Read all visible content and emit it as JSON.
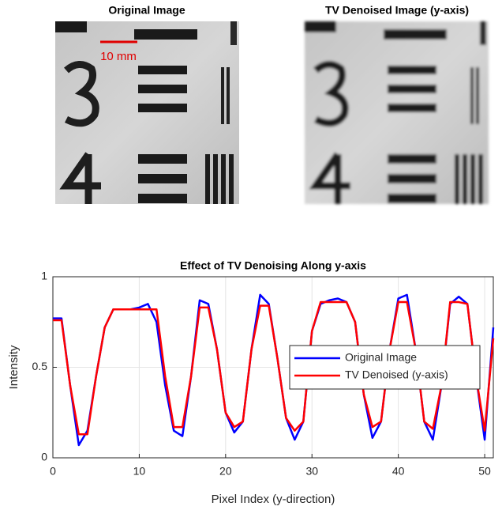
{
  "images": [
    {
      "title": "Original Image",
      "scale_bar_label": "10 mm"
    },
    {
      "title": "TV Denoised Image (y-axis)"
    }
  ],
  "chart_data": {
    "type": "line",
    "title": "Effect of TV Denoising Along y-axis",
    "x_label": "Pixel Index (y-direction)",
    "y_label": "Intensity",
    "x": [
      0,
      1,
      2,
      3,
      4,
      5,
      6,
      7,
      8,
      9,
      10,
      11,
      12,
      13,
      14,
      15,
      16,
      17,
      18,
      19,
      20,
      21,
      22,
      23,
      24,
      25,
      26,
      27,
      28,
      29,
      30,
      31,
      32,
      33,
      34,
      35,
      36,
      37,
      38,
      39,
      40,
      41,
      42,
      43,
      44,
      45,
      46,
      47,
      48,
      49,
      50,
      51
    ],
    "series": [
      {
        "name": "Original Image",
        "color": "#0000ff",
        "values": [
          0.77,
          0.77,
          0.4,
          0.07,
          0.15,
          0.45,
          0.72,
          0.82,
          0.82,
          0.82,
          0.83,
          0.85,
          0.75,
          0.4,
          0.15,
          0.12,
          0.45,
          0.87,
          0.85,
          0.6,
          0.25,
          0.14,
          0.2,
          0.6,
          0.9,
          0.85,
          0.55,
          0.22,
          0.1,
          0.2,
          0.7,
          0.85,
          0.87,
          0.88,
          0.86,
          0.75,
          0.35,
          0.11,
          0.2,
          0.6,
          0.88,
          0.9,
          0.6,
          0.2,
          0.1,
          0.4,
          0.85,
          0.89,
          0.85,
          0.45,
          0.1,
          0.72
        ]
      },
      {
        "name": "TV Denoised (y-axis)",
        "color": "#ff0000",
        "values": [
          0.76,
          0.76,
          0.4,
          0.13,
          0.13,
          0.45,
          0.72,
          0.82,
          0.82,
          0.82,
          0.82,
          0.82,
          0.82,
          0.45,
          0.17,
          0.17,
          0.45,
          0.83,
          0.83,
          0.6,
          0.25,
          0.17,
          0.2,
          0.6,
          0.84,
          0.84,
          0.55,
          0.22,
          0.15,
          0.2,
          0.7,
          0.86,
          0.86,
          0.86,
          0.86,
          0.75,
          0.35,
          0.17,
          0.2,
          0.6,
          0.86,
          0.86,
          0.6,
          0.2,
          0.16,
          0.4,
          0.86,
          0.86,
          0.85,
          0.45,
          0.15,
          0.66
        ]
      }
    ],
    "xlim": [
      0,
      51
    ],
    "ylim": [
      0,
      1
    ],
    "xticks": [
      0,
      10,
      20,
      30,
      40,
      50
    ],
    "yticks": [
      0,
      0.5,
      1
    ],
    "grid": true,
    "legend": "right"
  }
}
